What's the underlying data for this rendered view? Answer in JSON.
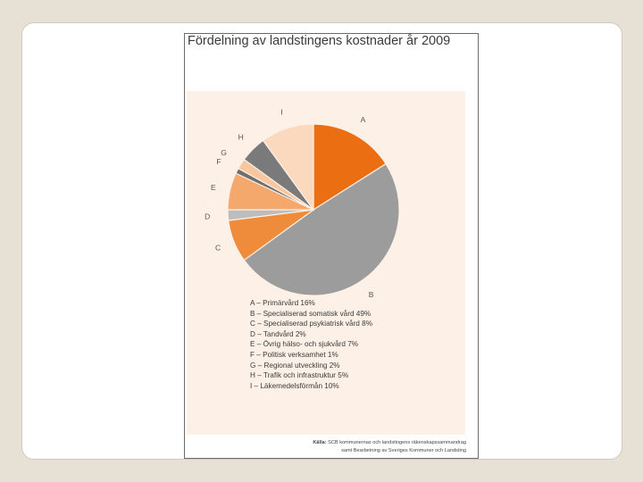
{
  "chart_data": {
    "type": "pie",
    "title": "Fördelning av landstingens kostnader år 2009",
    "categories": [
      "A",
      "B",
      "C",
      "D",
      "E",
      "F",
      "G",
      "H",
      "I"
    ],
    "values": [
      16,
      49,
      8,
      2,
      7,
      1,
      2,
      5,
      10
    ],
    "colors": [
      "#ec6e12",
      "#9c9c9c",
      "#ef8c3c",
      "#bdbdbd",
      "#f5a86c",
      "#6f6f6f",
      "#f8c7a0",
      "#7a7a7a",
      "#fbd9bf"
    ],
    "legend": [
      "A – Primärvård 16%",
      "B – Specialiserad somatisk vård 49%",
      "C – Specialiserad psykiatrisk vård 8%",
      "D – Tandvård 2%",
      "E – Övrig hälso- och sjukvård 7%",
      "F – Politisk verksamhet 1%",
      "G – Regional utveckling 2%",
      "H – Trafik och infrastruktur 5%",
      "I – Läkemedelsförmån 10%"
    ],
    "legend_position": "bottom"
  },
  "source": {
    "label": "Källa:",
    "line1": "SCB kommunernas och landstingens räkenskapssammandrag",
    "line2": "samt Bearbetning av Sveriges Kommuner och Landsting"
  }
}
